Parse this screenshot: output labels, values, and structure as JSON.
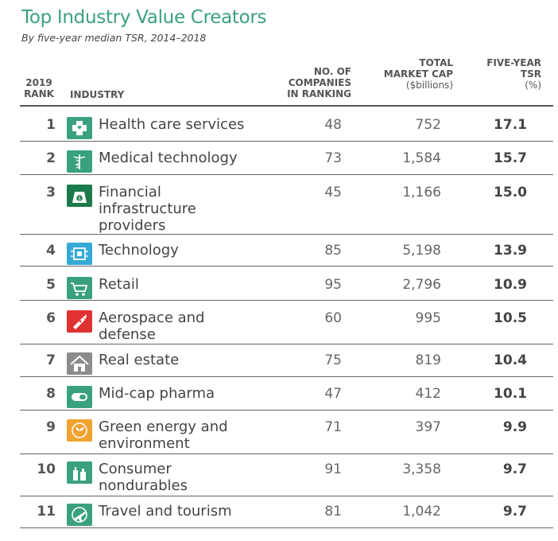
{
  "title": "Top Industry Value Creators",
  "subtitle": "By five-year median TSR, 2014–2018",
  "headers": {
    "rank_l1": "2019",
    "rank_l2": "RANK",
    "industry": "INDUSTRY",
    "num_l1": "NO. OF",
    "num_l2": "COMPANIES",
    "num_l3": "IN RANKING",
    "cap_l1": "TOTAL",
    "cap_l2": "MARKET CAP",
    "cap_unit": "($billions)",
    "tsr_l1": "FIVE-YEAR",
    "tsr_l2": "TSR",
    "tsr_unit": "(%)"
  },
  "chart_data": {
    "type": "table",
    "columns": [
      "2019 RANK",
      "INDUSTRY",
      "NO. OF COMPANIES IN RANKING",
      "TOTAL MARKET CAP ($billions)",
      "FIVE-YEAR TSR (%)"
    ],
    "rows": [
      {
        "rank": "1",
        "industry_lines": [
          "Health care services"
        ],
        "companies": "48",
        "market_cap": "752",
        "tsr": "17.1",
        "icon": "health-cross-icon",
        "icon_color": "#3aa17e"
      },
      {
        "rank": "2",
        "industry_lines": [
          "Medical technology"
        ],
        "companies": "73",
        "market_cap": "1,584",
        "tsr": "15.7",
        "icon": "caduceus-icon",
        "icon_color": "#3aa17e"
      },
      {
        "rank": "3",
        "industry_lines": [
          "Financial",
          "infrastructure",
          "providers"
        ],
        "companies": "45",
        "market_cap": "1,166",
        "tsr": "15.0",
        "icon": "money-bag-icon",
        "icon_color": "#1d7a4a"
      },
      {
        "rank": "4",
        "industry_lines": [
          "Technology"
        ],
        "companies": "85",
        "market_cap": "5,198",
        "tsr": "13.9",
        "icon": "microchip-icon",
        "icon_color": "#35a9d6"
      },
      {
        "rank": "5",
        "industry_lines": [
          "Retail"
        ],
        "companies": "95",
        "market_cap": "2,796",
        "tsr": "10.9",
        "icon": "shopping-cart-icon",
        "icon_color": "#3aa17e"
      },
      {
        "rank": "6",
        "industry_lines": [
          "Aerospace and",
          "defense"
        ],
        "companies": "60",
        "market_cap": "995",
        "tsr": "10.5",
        "icon": "rocket-icon",
        "icon_color": "#e03232"
      },
      {
        "rank": "7",
        "industry_lines": [
          "Real estate"
        ],
        "companies": "75",
        "market_cap": "819",
        "tsr": "10.4",
        "icon": "house-icon",
        "icon_color": "#8c8c8c"
      },
      {
        "rank": "8",
        "industry_lines": [
          "Mid-cap pharma"
        ],
        "companies": "47",
        "market_cap": "412",
        "tsr": "10.1",
        "icon": "pill-icon",
        "icon_color": "#3aa17e"
      },
      {
        "rank": "9",
        "industry_lines": [
          "Green energy and",
          "environment"
        ],
        "companies": "71",
        "market_cap": "397",
        "tsr": "9.9",
        "icon": "leaf-icon",
        "icon_color": "#f0a330"
      },
      {
        "rank": "10",
        "industry_lines": [
          "Consumer",
          "nondurables"
        ],
        "companies": "91",
        "market_cap": "3,358",
        "tsr": "9.7",
        "icon": "bottles-icon",
        "icon_color": "#3aa17e"
      },
      {
        "rank": "11",
        "industry_lines": [
          "Travel and tourism"
        ],
        "companies": "81",
        "market_cap": "1,042",
        "tsr": "9.7",
        "icon": "airplane-icon",
        "icon_color": "#3aa17e"
      }
    ]
  }
}
